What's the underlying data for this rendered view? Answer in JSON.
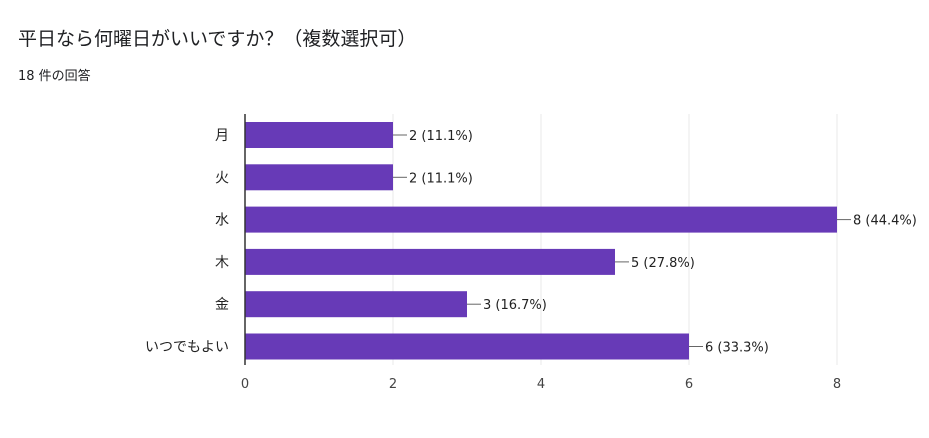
{
  "question": {
    "title": "平日なら何曜日がいいですか？（複数選択可）",
    "response_count": "18 件の回答"
  },
  "chart_data": {
    "type": "bar",
    "orientation": "horizontal",
    "title": "",
    "xlabel": "",
    "ylabel": "",
    "categories": [
      "月",
      "火",
      "水",
      "木",
      "金",
      "いつでもよい"
    ],
    "values": [
      2,
      2,
      8,
      5,
      3,
      6
    ],
    "data_labels": [
      "2 (11.1%)",
      "2 (11.1%)",
      "8 (44.4%)",
      "5 (27.8%)",
      "3 (16.7%)",
      "6 (33.3%)"
    ],
    "xlim": [
      0,
      8
    ],
    "xticks": [
      "0",
      "2",
      "4",
      "6",
      "8"
    ],
    "grid": true,
    "legend": "none",
    "bar_color": "#673ab7"
  }
}
